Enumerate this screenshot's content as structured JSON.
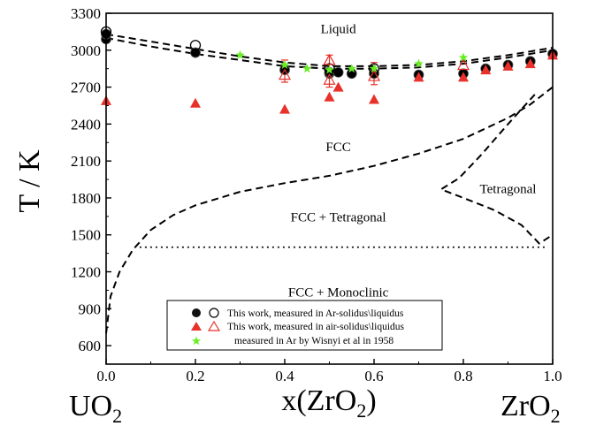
{
  "chart_data": {
    "type": "scatter",
    "xlabel": "x(ZrO2)",
    "ylabel": "T / K",
    "xlim": [
      0,
      1.0
    ],
    "ylim": [
      450,
      3300
    ],
    "xticks": [
      "0.0",
      "0.2",
      "0.4",
      "0.6",
      "0.8",
      "1.0"
    ],
    "yticks": [
      "600",
      "900",
      "1200",
      "1500",
      "1800",
      "2100",
      "2400",
      "2700",
      "3000",
      "3300"
    ],
    "end_labels": {
      "left": "UO2",
      "right": "ZrO2"
    },
    "region_labels": [
      {
        "text": "Liquid",
        "x": 0.52,
        "y": 3140
      },
      {
        "text": "FCC",
        "x": 0.52,
        "y": 2180
      },
      {
        "text": "Tetragonal",
        "x": 0.9,
        "y": 1840
      },
      {
        "text": "FCC  + Tetragonal",
        "x": 0.52,
        "y": 1610
      },
      {
        "text": "FCC  + Monoclinic",
        "x": 0.52,
        "y": 1000
      }
    ],
    "legend": {
      "position": "bottom-center",
      "entries": [
        "This work, measured in Ar-solidus\\liquidus",
        "This work, measured in air-solidus\\liquidus",
        "measured in Ar by Wisnyi et al in 1958"
      ]
    },
    "series": [
      {
        "name": "This work, measured in Ar-solidus",
        "marker": "filled-circle",
        "color": "#000000",
        "x": [
          0.0,
          0.0,
          0.2,
          0.4,
          0.5,
          0.5,
          0.52,
          0.55,
          0.6,
          0.7,
          0.8,
          0.85,
          0.9,
          0.95,
          1.0
        ],
        "y": [
          3090,
          3130,
          2980,
          2840,
          2810,
          2820,
          2820,
          2810,
          2810,
          2800,
          2810,
          2850,
          2880,
          2910,
          2970
        ]
      },
      {
        "name": "This work, measured in Ar-liquidus",
        "marker": "open-circle",
        "color": "#000000",
        "x": [
          0.0,
          0.2,
          0.5,
          0.6
        ],
        "y": [
          3150,
          3040,
          2850,
          2850
        ]
      },
      {
        "name": "This work, measured in air-solidus",
        "marker": "filled-triangle",
        "color": "#e8312a",
        "x": [
          0.0,
          0.2,
          0.4,
          0.5,
          0.52,
          0.6,
          0.7,
          0.8,
          0.85,
          0.9,
          0.95,
          1.0
        ],
        "y": [
          2590,
          2570,
          2520,
          2620,
          2700,
          2600,
          2780,
          2780,
          2840,
          2870,
          2890,
          2960
        ]
      },
      {
        "name": "This work, measured in air-liquidus",
        "marker": "open-triangle",
        "color": "#e8312a",
        "x": [
          0.4,
          0.5,
          0.5,
          0.6,
          0.8
        ],
        "y": [
          2800,
          2920,
          2760,
          2790,
          2880
        ]
      },
      {
        "name": "measured in Ar by Wisnyi et al in 1958",
        "marker": "star",
        "color": "#66ee22",
        "x": [
          0.3,
          0.4,
          0.45,
          0.5,
          0.55,
          0.6,
          0.7,
          0.8
        ],
        "y": [
          2960,
          2880,
          2850,
          2840,
          2850,
          2850,
          2890,
          2940
        ]
      }
    ],
    "error_bars": [
      {
        "x": 0.4,
        "low": 2740,
        "high": 2920
      },
      {
        "x": 0.5,
        "low": 2700,
        "high": 2960
      },
      {
        "x": 0.6,
        "low": 2720,
        "high": 2900
      }
    ],
    "phase_boundaries": [
      {
        "name": "liquidus",
        "style": "dashed",
        "x": [
          0.0,
          0.1,
          0.2,
          0.3,
          0.4,
          0.5,
          0.6,
          0.7,
          0.8,
          0.9,
          1.0
        ],
        "y": [
          3130,
          3070,
          3010,
          2950,
          2900,
          2870,
          2870,
          2880,
          2910,
          2960,
          3020
        ]
      },
      {
        "name": "solidus",
        "style": "dashed",
        "x": [
          0.0,
          0.1,
          0.2,
          0.3,
          0.4,
          0.5,
          0.6,
          0.7,
          0.8,
          0.9,
          1.0
        ],
        "y": [
          3100,
          3030,
          2970,
          2920,
          2870,
          2850,
          2850,
          2860,
          2890,
          2940,
          3000
        ]
      },
      {
        "name": "FCC / FCC+Tetragonal",
        "style": "dashed",
        "x": [
          0.0,
          0.01,
          0.03,
          0.06,
          0.1,
          0.15,
          0.2,
          0.3,
          0.4,
          0.5,
          0.6,
          0.7,
          0.8,
          0.9,
          0.95,
          1.0
        ],
        "y": [
          700,
          1000,
          1200,
          1380,
          1540,
          1660,
          1740,
          1850,
          1920,
          1980,
          2060,
          2160,
          2280,
          2450,
          2560,
          2700
        ]
      },
      {
        "name": "Tetragonal / FCC+Tetragonal",
        "style": "dashed",
        "x": [
          0.96,
          0.9,
          0.84,
          0.79,
          0.75,
          0.8,
          0.87,
          0.93,
          0.97,
          1.0
        ],
        "y": [
          2640,
          2400,
          2150,
          1960,
          1870,
          1800,
          1700,
          1580,
          1430,
          1500
        ]
      },
      {
        "name": "eutectoid",
        "style": "dotted",
        "x": [
          0.075,
          0.99
        ],
        "y": [
          1400,
          1400
        ]
      }
    ]
  }
}
